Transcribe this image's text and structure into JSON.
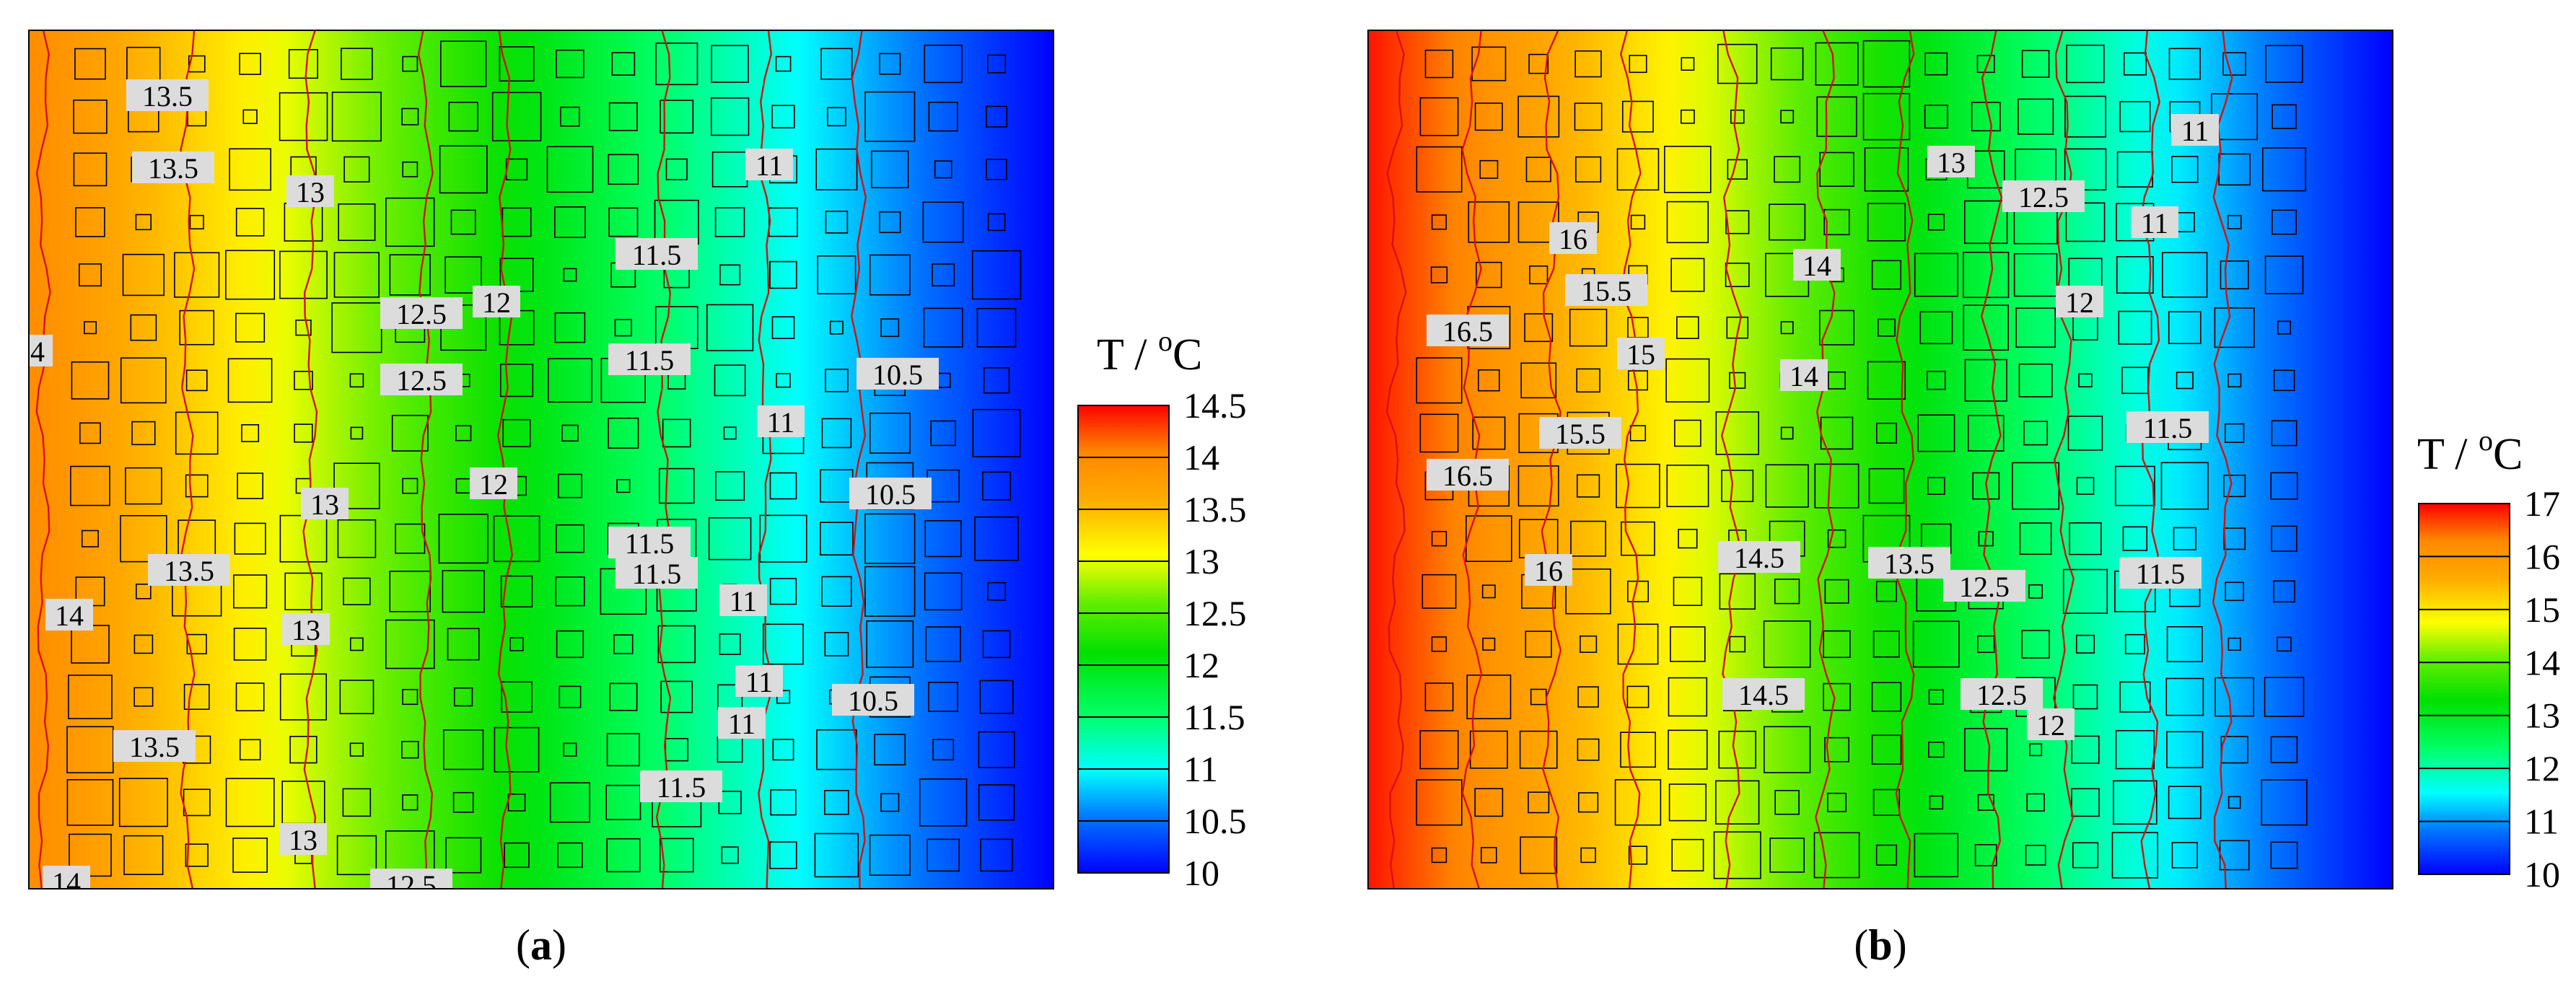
{
  "chart_data": [
    {
      "type": "heatmap",
      "panel_label": "a",
      "colorbar": {
        "title": "T / ",
        "unit_sup": "o",
        "unit_main": "C",
        "range": [
          10,
          14.5
        ],
        "ticks": [
          "14.5",
          "14",
          "13.5",
          "13",
          "12.5",
          "12",
          "11.5",
          "11",
          "10.5",
          "10"
        ]
      },
      "field": {
        "direction": "left-to-right",
        "t_left": 14.0,
        "t_right": 10.0
      },
      "contour_labels": [
        {
          "text": "13.5"
        },
        {
          "text": "13.5"
        },
        {
          "text": "13"
        },
        {
          "text": "11"
        },
        {
          "text": "11.5"
        },
        {
          "text": "12.5"
        },
        {
          "text": "12"
        },
        {
          "text": "4"
        },
        {
          "text": "11.5"
        },
        {
          "text": "12.5"
        },
        {
          "text": "10.5"
        },
        {
          "text": "11"
        },
        {
          "text": "12"
        },
        {
          "text": "13"
        },
        {
          "text": "10.5"
        },
        {
          "text": "11.5"
        },
        {
          "text": "13.5"
        },
        {
          "text": "11.5"
        },
        {
          "text": "14"
        },
        {
          "text": "11"
        },
        {
          "text": "13"
        },
        {
          "text": "11"
        },
        {
          "text": "10.5"
        },
        {
          "text": "13.5"
        },
        {
          "text": "11"
        },
        {
          "text": "11.5"
        },
        {
          "text": "13"
        },
        {
          "text": "14"
        },
        {
          "text": "12.5"
        }
      ]
    },
    {
      "type": "heatmap",
      "panel_label": "b",
      "colorbar": {
        "title": "T / ",
        "unit_sup": "o",
        "unit_main": "C",
        "range": [
          10,
          17
        ],
        "ticks": [
          "17",
          "16",
          "15",
          "14",
          "13",
          "12",
          "11",
          "10"
        ]
      },
      "field": {
        "direction": "left-to-right",
        "t_left": 16.9,
        "t_right": 10.0
      },
      "contour_labels": [
        {
          "text": "11"
        },
        {
          "text": "13"
        },
        {
          "text": "12.5"
        },
        {
          "text": "11"
        },
        {
          "text": "16"
        },
        {
          "text": "14"
        },
        {
          "text": "15.5"
        },
        {
          "text": "12"
        },
        {
          "text": "16.5"
        },
        {
          "text": "15"
        },
        {
          "text": "14"
        },
        {
          "text": "15.5"
        },
        {
          "text": "11.5"
        },
        {
          "text": "16.5"
        },
        {
          "text": "14.5"
        },
        {
          "text": "13.5"
        },
        {
          "text": "16"
        },
        {
          "text": "12.5"
        },
        {
          "text": "11.5"
        },
        {
          "text": "14.5"
        },
        {
          "text": "12.5"
        },
        {
          "text": "12"
        }
      ]
    }
  ]
}
